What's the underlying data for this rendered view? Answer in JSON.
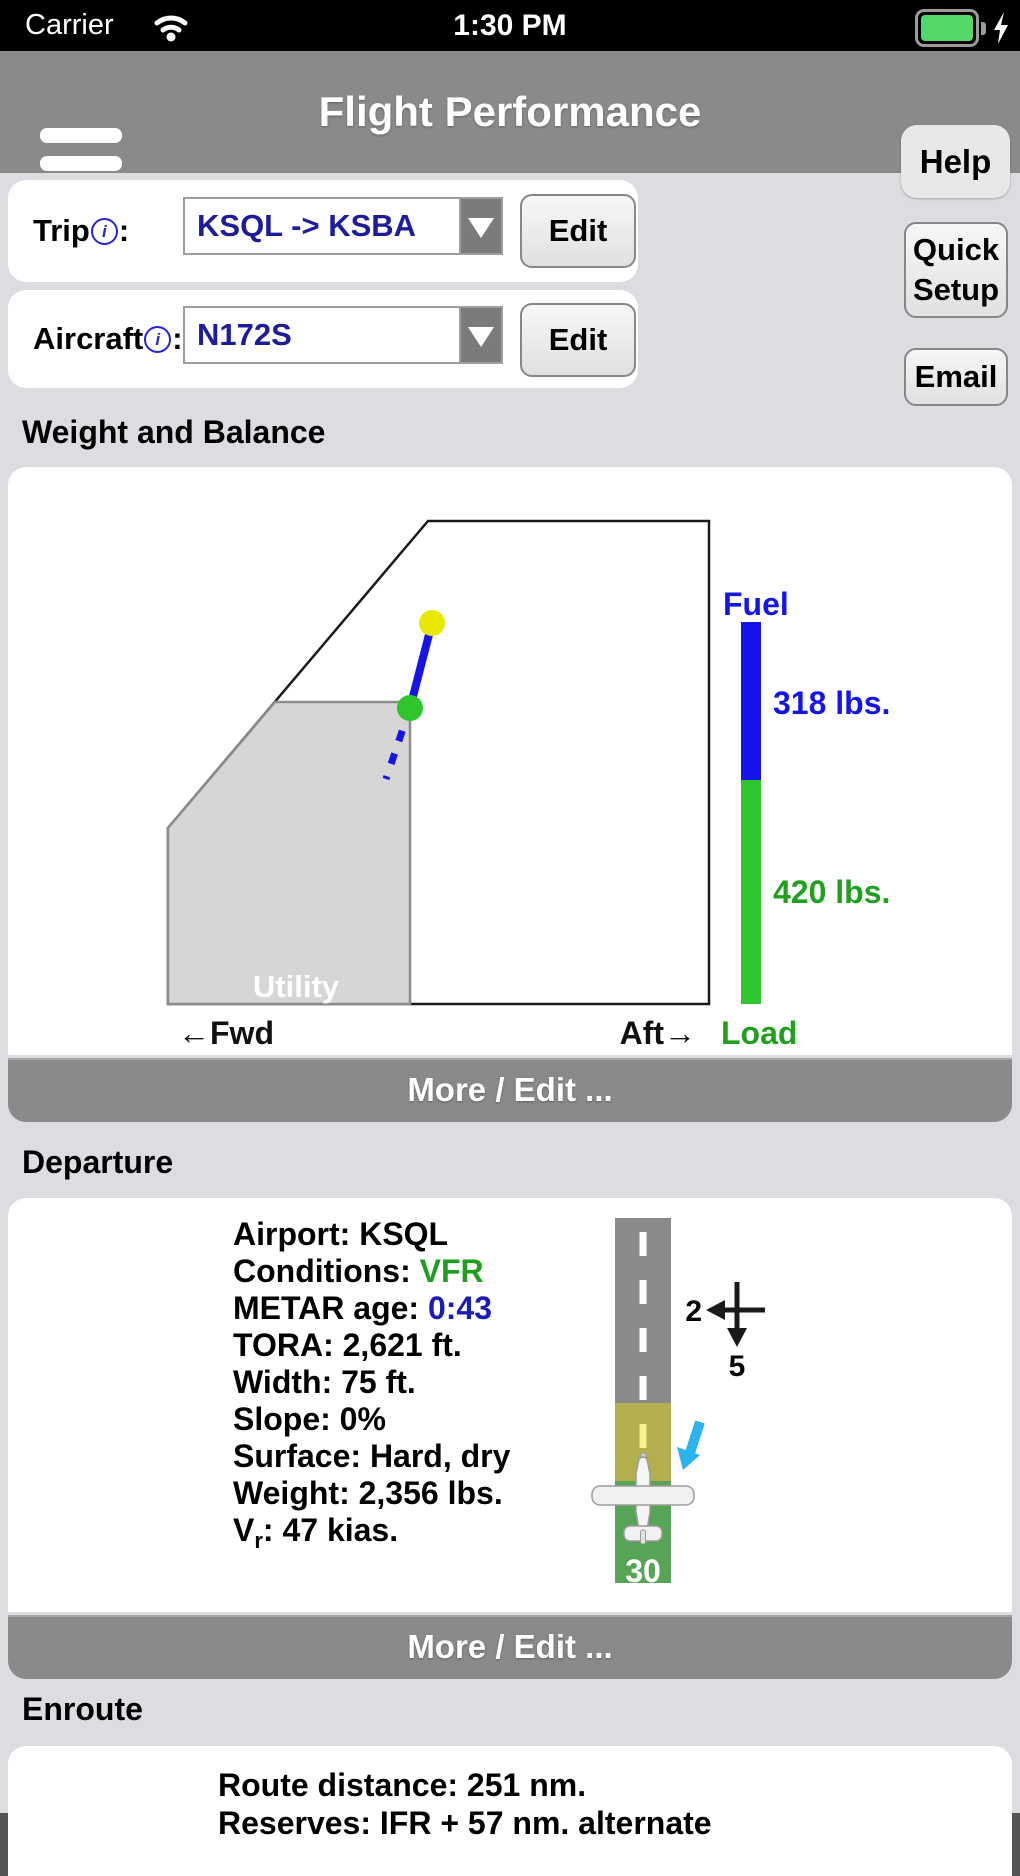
{
  "status_bar": {
    "carrier": "Carrier",
    "time": "1:30 PM"
  },
  "header": {
    "title": "Flight Performance",
    "help": "Help"
  },
  "trip_row": {
    "label": "Trip",
    "colon": ":",
    "value": "KSQL -> KSBA",
    "edit": "Edit",
    "quick_setup": "Quick Setup"
  },
  "aircraft_row": {
    "label": "Aircraft",
    "colon": ":",
    "value": "N172S",
    "edit": "Edit",
    "email": "Email"
  },
  "weight_balance": {
    "heading": "Weight and Balance",
    "utility_label": "Utility",
    "fwd_label": "←Fwd",
    "aft_label": "Aft→",
    "fuel_label": "Fuel",
    "fuel_value": "318 lbs.",
    "load_value": "420 lbs.",
    "load_label": "Load",
    "more": "More / Edit ..."
  },
  "departure": {
    "heading": "Departure",
    "lines": [
      [
        {
          "t": "Airport: KSQL"
        }
      ],
      [
        {
          "t": "Conditions: "
        },
        {
          "t": "VFR",
          "c": "green"
        }
      ],
      [
        {
          "t": "METAR age: "
        },
        {
          "t": "0:43",
          "c": "blue"
        }
      ],
      [
        {
          "t": "TORA: 2,621 ft."
        }
      ],
      [
        {
          "t": "Width: 75 ft."
        }
      ],
      [
        {
          "t": "Slope: 0%"
        }
      ],
      [
        {
          "t": "Surface: Hard, dry"
        }
      ],
      [
        {
          "t": "Weight: 2,356 lbs."
        }
      ],
      [
        {
          "t": "V"
        },
        {
          "t": "r",
          "c": "sub"
        },
        {
          "t": ": 47 kias."
        }
      ]
    ],
    "wind": {
      "crosswind": "2",
      "headwind": "5"
    },
    "runway_number": "30",
    "more": "More / Edit ..."
  },
  "enroute": {
    "heading": "Enroute",
    "lines": [
      "Route distance: 251 nm.",
      "Reserves: IFR + 57 nm. alternate"
    ]
  },
  "icons": {
    "info_glyph": "i"
  },
  "colors": {
    "header_gray": "#8a8a8a",
    "value_navy": "#1c1c9c",
    "vfr_green": "#1e9e1e",
    "metar_blue": "#1b1bb8",
    "fuel_blue": "#1414ef",
    "load_green": "#2ec52e",
    "label_green": "#1fa11f",
    "point_yellow": "#e9e900",
    "runway_gray": "#8a8a8a",
    "runway_caution_olive": "#b3ae4e",
    "runway_end_green": "#57a457",
    "wind_arrow_cyan": "#2bb3f0",
    "battery_green": "#53d769"
  }
}
